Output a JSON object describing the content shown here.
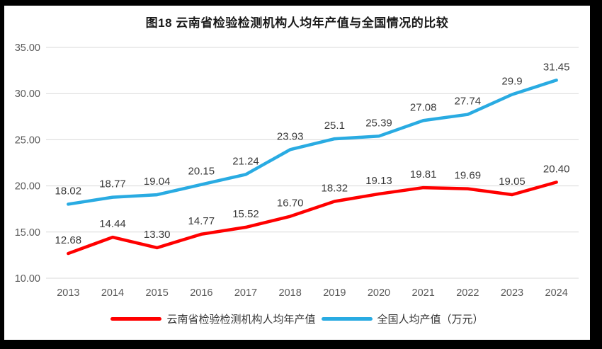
{
  "window": {
    "background_color": "#000000",
    "frame_color": "#ffffff"
  },
  "chart_data": {
    "type": "line",
    "title": "图18 云南省检验检测机构人均年产值与全国情况的比较",
    "categories": [
      "2013",
      "2014",
      "2015",
      "2016",
      "2017",
      "2018",
      "2019",
      "2020",
      "2021",
      "2022",
      "2023",
      "2024"
    ],
    "series": [
      {
        "name": "云南省检验检测机构人均年产值",
        "color": "#ff0000",
        "values": [
          12.68,
          14.44,
          13.3,
          14.77,
          15.52,
          16.7,
          18.32,
          19.13,
          19.81,
          19.69,
          19.05,
          20.4
        ],
        "labels": [
          "12.68",
          "14.44",
          "13.30",
          "14.77",
          "15.52",
          "16.70",
          "18.32",
          "19.13",
          "19.81",
          "19.69",
          "19.05",
          "20.40"
        ]
      },
      {
        "name": "全国人均产值（万元）",
        "color": "#29abe2",
        "values": [
          18.02,
          18.77,
          19.04,
          20.15,
          21.24,
          23.93,
          25.1,
          25.39,
          27.08,
          27.74,
          29.9,
          31.45
        ],
        "labels": [
          "18.02",
          "18.77",
          "19.04",
          "20.15",
          "21.24",
          "23.93",
          "25.1",
          "25.39",
          "27.08",
          "27.74",
          "29.9",
          "31.45"
        ]
      }
    ],
    "xlabel": "",
    "ylabel": "",
    "y_axis": {
      "min": 10,
      "max": 35,
      "ticks": [
        "10.00",
        "15.00",
        "20.00",
        "25.00",
        "30.00",
        "35.00"
      ],
      "tick_values": [
        10,
        15,
        20,
        25,
        30,
        35
      ]
    },
    "grid": true,
    "legend_position": "bottom",
    "colors": {
      "axis_label": "#595959",
      "data_label": "#3a3a3a",
      "gridline": "#d9d9d9",
      "title": "#1a1a1a"
    }
  }
}
